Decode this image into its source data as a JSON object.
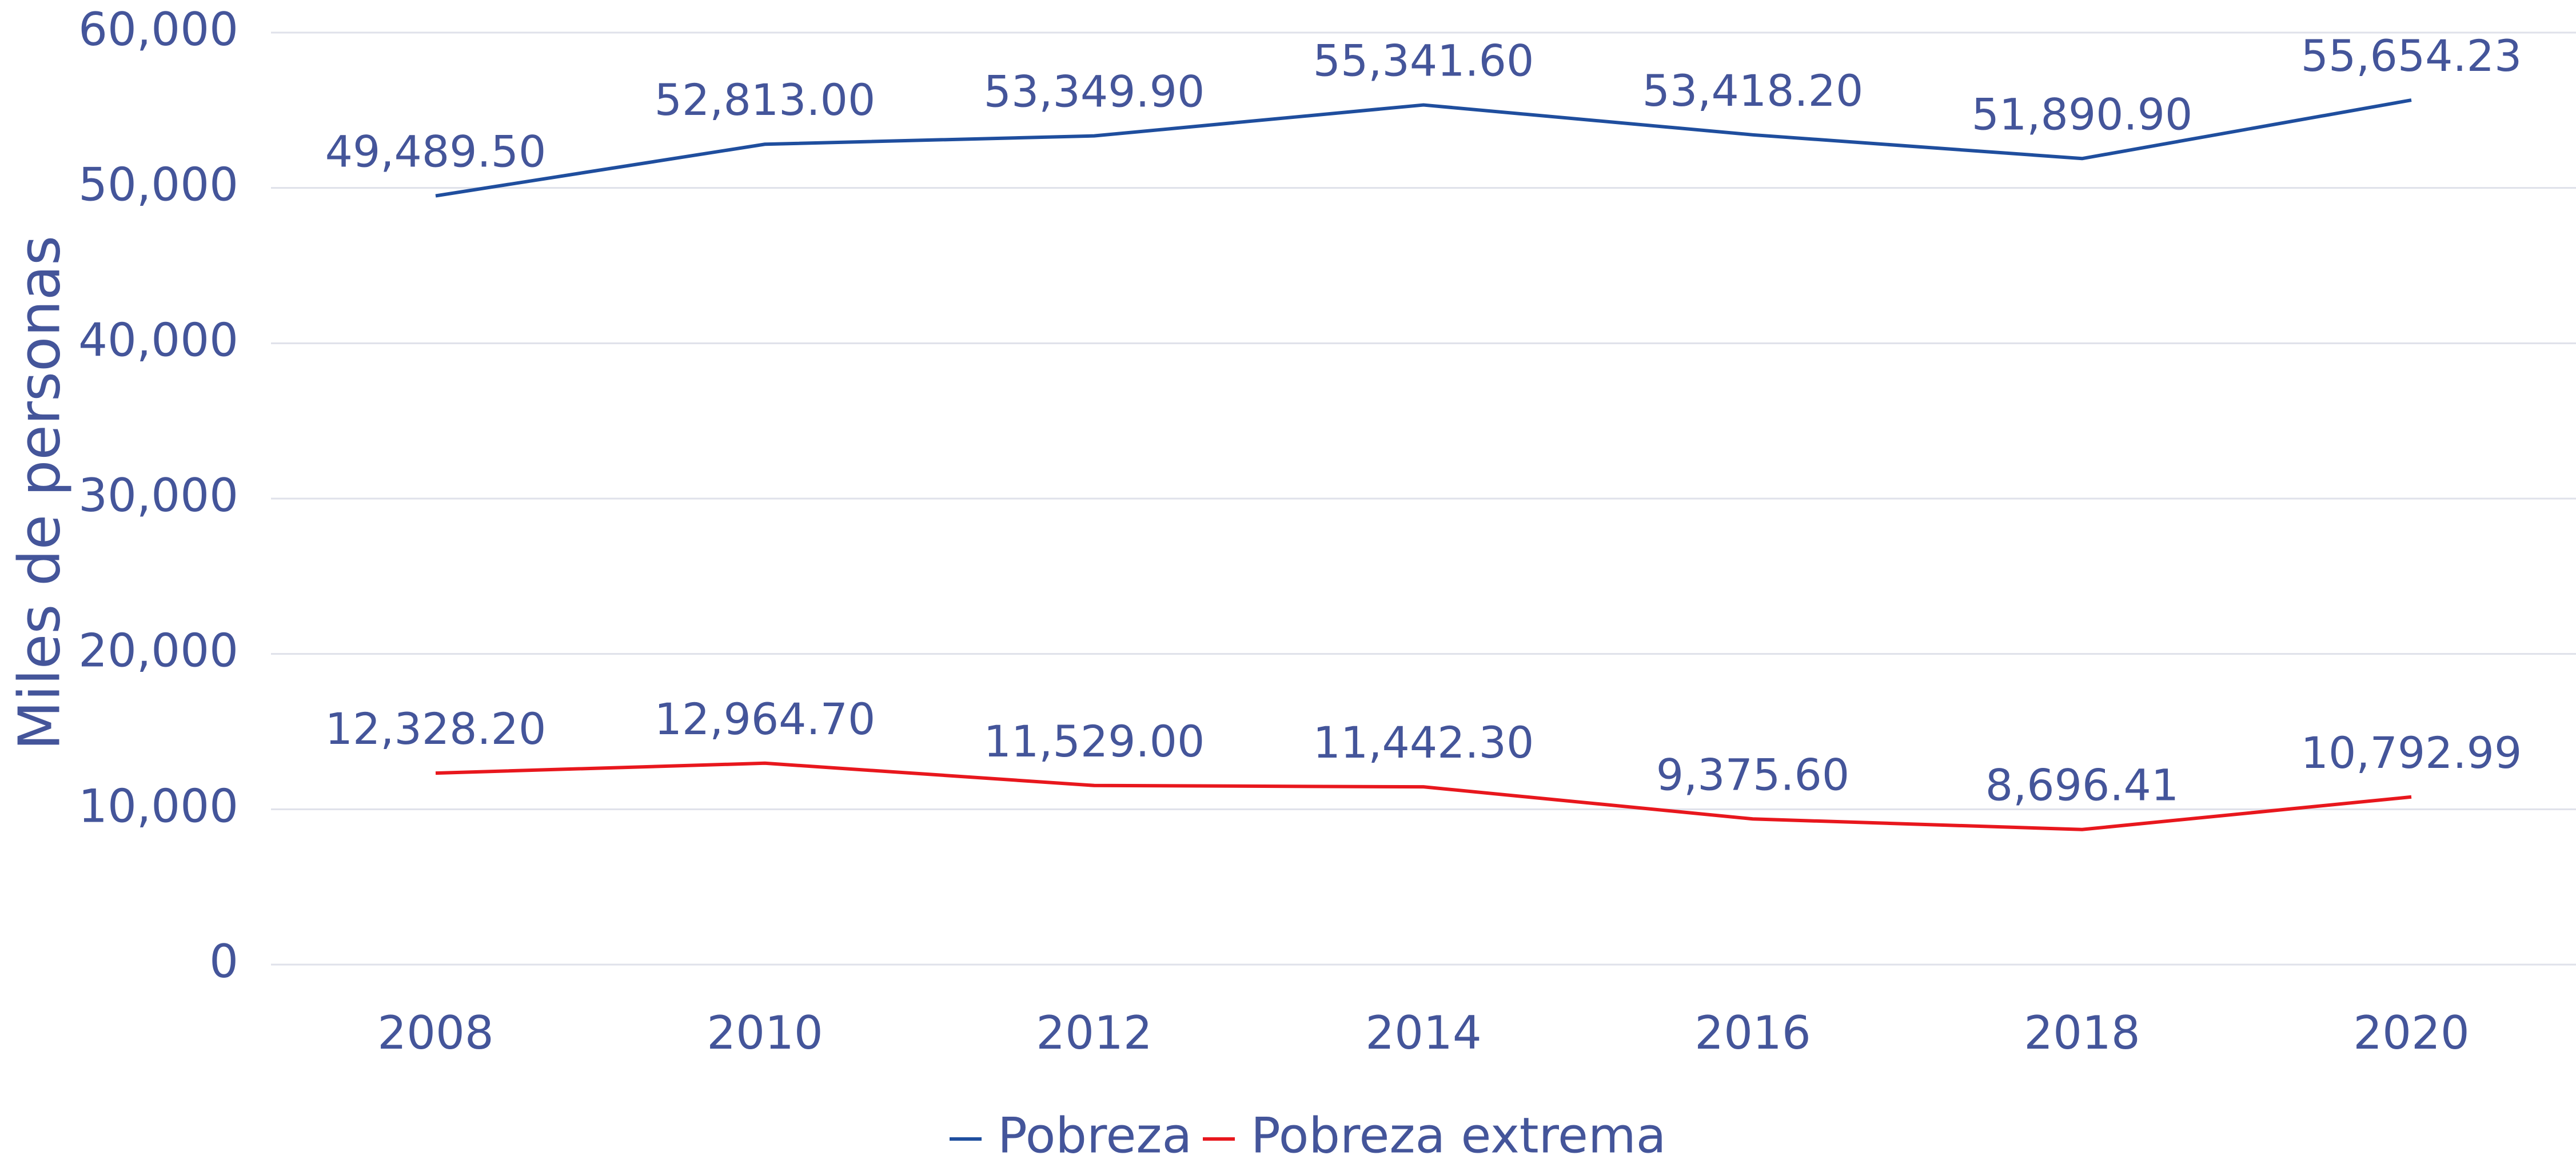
{
  "chart_data": {
    "type": "line",
    "y_label": "Miles de personas",
    "categories": [
      "2008",
      "2010",
      "2012",
      "2014",
      "2016",
      "2018",
      "2020"
    ],
    "series": [
      {
        "name": "Pobreza",
        "color": "#1f4e9e",
        "values": [
          49489.5,
          52813.0,
          53349.9,
          55341.6,
          53418.2,
          51890.9,
          55654.23
        ],
        "value_labels": [
          "49,489.50",
          "52,813.00",
          "53,349.90",
          "55,341.60",
          "53,418.20",
          "51,890.90",
          "55,654.23"
        ]
      },
      {
        "name": "Pobreza extrema",
        "color": "#e8171d",
        "values": [
          12328.2,
          12964.7,
          11529.0,
          11442.3,
          9375.6,
          8696.41,
          10792.99
        ],
        "value_labels": [
          "12,328.20",
          "12,964.70",
          "11,529.00",
          "11,442.30",
          "9,375.60",
          "8,696.41",
          "10,792.99"
        ]
      }
    ],
    "ylim": [
      0,
      60000
    ],
    "yticks": [
      0,
      {
        "value": 10000,
        "label": "10,000"
      },
      {
        "value": 20000,
        "label": "20,000"
      },
      {
        "value": 30000,
        "label": "30,000"
      },
      {
        "value": 40000,
        "label": "40,000"
      },
      {
        "value": 50000,
        "label": "50,000"
      },
      {
        "value": 60000,
        "label": "60,000"
      }
    ],
    "grid": true,
    "legend": "bottom"
  }
}
